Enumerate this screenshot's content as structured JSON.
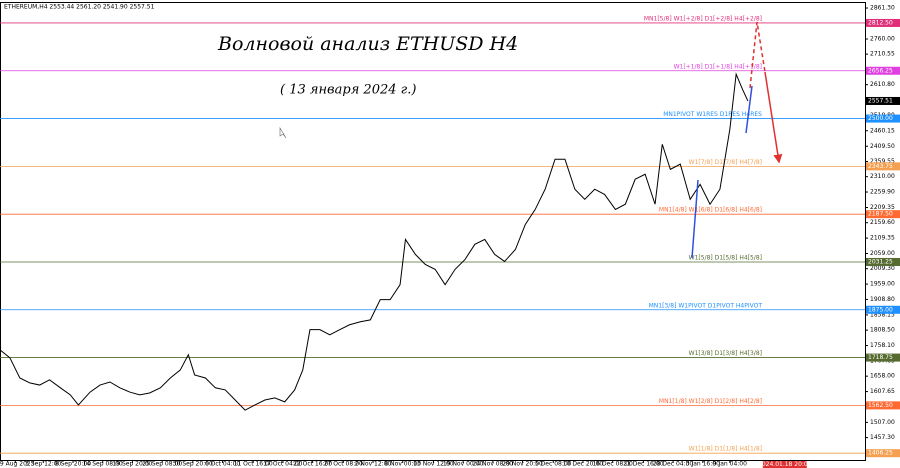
{
  "chart_data": {
    "type": "line",
    "header": "ETHEREUM,H4  2553.44 2561.20 2541.90 2557.51",
    "title": "Волновой анализ ETHUSD H4",
    "subtitle": "( 13 января 2024 г.)",
    "xlim": [
      0,
      960
    ],
    "ylim": [
      1384,
      2881
    ],
    "series": [
      {
        "name": "ETHEREUM",
        "color": "#000000",
        "x": [
          0,
          11,
          22,
          33,
          44,
          55,
          67,
          78,
          87,
          100,
          111,
          122,
          133,
          144,
          155,
          166,
          178,
          189,
          200,
          209,
          216,
          228,
          239,
          250,
          261,
          272,
          283,
          294,
          305,
          316,
          327,
          336,
          344,
          355,
          366,
          377,
          388,
          400,
          411,
          422,
          433,
          444,
          450,
          461,
          472,
          483,
          494,
          505,
          516,
          527,
          538,
          549,
          560,
          572,
          583,
          594,
          605,
          616,
          627,
          638,
          649,
          660,
          671,
          683,
          694,
          705,
          716,
          727,
          735,
          744,
          755,
          766,
          777,
          788,
          799,
          810,
          817,
          824,
          830
        ],
        "values": [
          1744,
          1718,
          1652,
          1636,
          1629,
          1646,
          1620,
          1597,
          1564,
          1606,
          1629,
          1639,
          1620,
          1606,
          1597,
          1603,
          1620,
          1652,
          1678,
          1728,
          1662,
          1652,
          1620,
          1613,
          1580,
          1547,
          1564,
          1580,
          1587,
          1574,
          1613,
          1678,
          1810,
          1810,
          1793,
          1810,
          1826,
          1836,
          1842,
          1908,
          1908,
          1957,
          2105,
          2056,
          2023,
          2007,
          1957,
          2007,
          2039,
          2089,
          2105,
          2056,
          2033,
          2072,
          2154,
          2203,
          2269,
          2367,
          2367,
          2269,
          2236,
          2269,
          2252,
          2203,
          2220,
          2302,
          2318,
          2220,
          2416,
          2334,
          2351,
          2236,
          2285,
          2220,
          2269,
          2465,
          2645,
          2596,
          2557.51
        ]
      }
    ],
    "yticks": [
      {
        "value": 2861.3,
        "label": "2861.30"
      },
      {
        "value": 2760,
        "label": "2760.00"
      },
      {
        "value": 2710.55,
        "label": "2710.55"
      },
      {
        "value": 2610.8,
        "label": "2610.80"
      },
      {
        "value": 2510.8,
        "label": "2510.80"
      },
      {
        "value": 2460.15,
        "label": "2460.15"
      },
      {
        "value": 2409.5,
        "label": "2409.50"
      },
      {
        "value": 2359.55,
        "label": "2359.55"
      },
      {
        "value": 2310,
        "label": "2310.00"
      },
      {
        "value": 2259.9,
        "label": "2259.90"
      },
      {
        "value": 2209.35,
        "label": "2209.35"
      },
      {
        "value": 2159.6,
        "label": "2159.60"
      },
      {
        "value": 2109.35,
        "label": "2109.35"
      },
      {
        "value": 2059,
        "label": "2059.00"
      },
      {
        "value": 2009.3,
        "label": "2009.30"
      },
      {
        "value": 1959,
        "label": "1959.00"
      },
      {
        "value": 1908.8,
        "label": "1908.80"
      },
      {
        "value": 1858.15,
        "label": "1858.15"
      },
      {
        "value": 1808.5,
        "label": "1808.50"
      },
      {
        "value": 1758.1,
        "label": "1758.10"
      },
      {
        "value": 1707.65,
        "label": "1707.65"
      },
      {
        "value": 1658,
        "label": "1658.00"
      },
      {
        "value": 1607.65,
        "label": "1607.65"
      },
      {
        "value": 1557.3,
        "label": "1557.30"
      },
      {
        "value": 1507,
        "label": "1507.00"
      },
      {
        "value": 1457.3,
        "label": "1457.30"
      }
    ],
    "xticks": [
      {
        "value": 17,
        "label": "29 Aug 2023"
      },
      {
        "value": 48,
        "label": "3 Sep 12:00"
      },
      {
        "value": 81,
        "label": "8 Sep 20:00"
      },
      {
        "value": 114,
        "label": "14 Sep 08:00"
      },
      {
        "value": 147,
        "label": "19 Sep 20:00"
      },
      {
        "value": 180,
        "label": "25 Sep 08:00"
      },
      {
        "value": 214,
        "label": "30 Sep 20:00"
      },
      {
        "value": 247,
        "label": "6 Oct 04:00"
      },
      {
        "value": 281,
        "label": "11 Oct 16:00"
      },
      {
        "value": 314,
        "label": "17 Oct 04:00"
      },
      {
        "value": 347,
        "label": "22 Oct 16:00"
      },
      {
        "value": 381,
        "label": "27 Oct 08:00"
      },
      {
        "value": 414,
        "label": "2 Nov 12:00"
      },
      {
        "value": 447,
        "label": "8 Nov 00:00"
      },
      {
        "value": 481,
        "label": "13 Nov 12:00"
      },
      {
        "value": 514,
        "label": "19 Nov 00:00"
      },
      {
        "value": 547,
        "label": "24 Nov 08:00"
      },
      {
        "value": 580,
        "label": "29 Nov 20:00"
      },
      {
        "value": 614,
        "label": "5 Dec 08:00"
      },
      {
        "value": 647,
        "label": "10 Dec 20:00"
      },
      {
        "value": 680,
        "label": "16 Dec 08:00"
      },
      {
        "value": 714,
        "label": "21 Dec 16:00"
      },
      {
        "value": 747,
        "label": "28 Dec 04:00"
      },
      {
        "value": 780,
        "label": "3 Jan 16:00"
      },
      {
        "value": 810,
        "label": "9 Jan 04:00"
      }
    ],
    "time_marker": {
      "value": 871,
      "label": "2024.01.18 20:00",
      "color": "#e03030"
    },
    "last_price": {
      "value": 2557.51,
      "label": "2557.51",
      "color": "#000000"
    },
    "levels": [
      {
        "value": 2812.5,
        "label": "2812.50",
        "text": "MN1[5/8] W1[+2/8] D1[+2/8] H4[+2/8]",
        "color": "#e0307a"
      },
      {
        "value": 2656.25,
        "label": "2656.25",
        "text": "W1[+1/8] D1[+1/8] H4[+1/8]",
        "color": "#e040e0"
      },
      {
        "value": 2500,
        "label": "2500.00",
        "text": "MN1PIVOT W1RES D1RES H4RES",
        "color": "#1e90ff"
      },
      {
        "value": 2343.75,
        "label": "2343.75",
        "text": "W1[7/8] D1[7/8] H4[7/8]",
        "color": "#f4a050"
      },
      {
        "value": 2187.5,
        "label": "2187.50",
        "text": "MN1[4/8] W1[6/8] D1[6/8] H4[6/8]",
        "color": "#ff6a33"
      },
      {
        "value": 2031.25,
        "label": "2031.25",
        "text": "W1[5/8] D1[5/8] H4[5/8]",
        "color": "#556b2f"
      },
      {
        "value": 1875,
        "label": "1875.00",
        "text": "MN1[3/8] W1PIVOT D1PIVOT H4PIVOT",
        "color": "#1e90ff"
      },
      {
        "value": 1718.75,
        "label": "1718.75",
        "text": "W1[3/8] D1[3/8] H4[3/8]",
        "color": "#556b2f"
      },
      {
        "value": 1562.5,
        "label": "1562.50",
        "text": "MN1[1/8] W1[2/8] D1[2/8] H4[2/8]",
        "color": "#ff6a33"
      },
      {
        "value": 1406.25,
        "label": "1406.25",
        "text": "W1[1/8] D1[1/8] H4[1/8]",
        "color": "#f4a050"
      }
    ]
  }
}
